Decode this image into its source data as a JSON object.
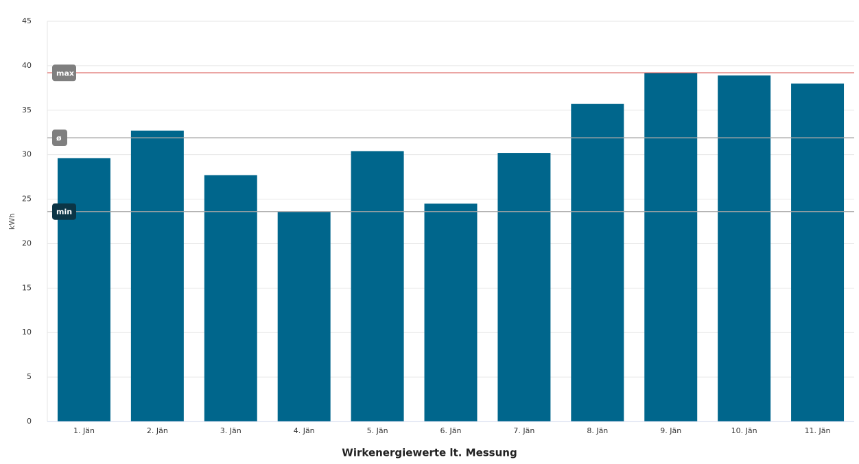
{
  "chart_data": {
    "type": "bar",
    "title": "Wirkenergiewerte lt. Messung",
    "y_label": "kWh",
    "categories": [
      "1. Jän",
      "2. Jän",
      "3. Jän",
      "4. Jän",
      "5. Jän",
      "6. Jän",
      "7. Jän",
      "8. Jän",
      "9. Jän",
      "10. Jän",
      "11. Jän"
    ],
    "values": [
      29.6,
      32.7,
      27.7,
      23.6,
      30.4,
      24.5,
      30.2,
      35.7,
      39.2,
      38.9,
      38.0
    ],
    "color": "#00668c",
    "ylim": [
      0,
      45
    ],
    "yticks": [
      0,
      5,
      10,
      15,
      20,
      25,
      30,
      35,
      40,
      45
    ],
    "grid": true,
    "reference_lines": [
      {
        "label": "max",
        "value": 39.2,
        "color": "#d9534f",
        "label_color": "#7f7f7f"
      },
      {
        "label": "ø",
        "value": 31.9,
        "color": "#a6a6a6",
        "label_color": "#7f7f7f"
      },
      {
        "label": "min",
        "value": 23.6,
        "color": "#a6a6a6",
        "label_color": "#0b3546"
      }
    ]
  }
}
